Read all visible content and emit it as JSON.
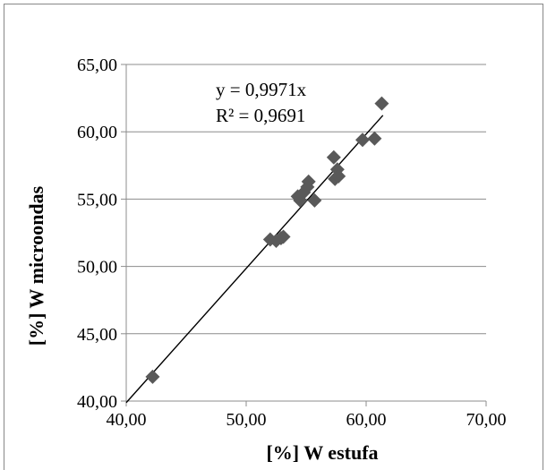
{
  "chart_data": {
    "type": "scatter",
    "title": "",
    "xlabel": "[%] W estufa",
    "ylabel": "[%] W microondas",
    "xlim": [
      40,
      70
    ],
    "ylim": [
      40,
      65
    ],
    "x_ticks": [
      40,
      50,
      60,
      70
    ],
    "y_ticks": [
      40,
      45,
      50,
      55,
      60,
      65
    ],
    "x_tick_labels": [
      "40,00",
      "50,00",
      "60,00",
      "70,00"
    ],
    "y_tick_labels": [
      "40,00",
      "45,00",
      "50,00",
      "55,00",
      "60,00",
      "65,00"
    ],
    "grid": {
      "horizontal": true,
      "vertical": false
    },
    "legend": "none",
    "series": [
      {
        "marker": "diamond",
        "color": "#595959",
        "points": [
          {
            "x": 42.2,
            "y": 41.8
          },
          {
            "x": 52.0,
            "y": 52.0
          },
          {
            "x": 52.5,
            "y": 51.9
          },
          {
            "x": 52.9,
            "y": 52.1
          },
          {
            "x": 53.1,
            "y": 52.2
          },
          {
            "x": 54.3,
            "y": 55.2
          },
          {
            "x": 54.5,
            "y": 54.9
          },
          {
            "x": 54.8,
            "y": 55.5
          },
          {
            "x": 55.2,
            "y": 56.3
          },
          {
            "x": 55.1,
            "y": 55.9
          },
          {
            "x": 55.7,
            "y": 54.9
          },
          {
            "x": 57.3,
            "y": 58.1
          },
          {
            "x": 57.6,
            "y": 57.2
          },
          {
            "x": 57.4,
            "y": 56.5
          },
          {
            "x": 57.7,
            "y": 56.7
          },
          {
            "x": 59.7,
            "y": 59.4
          },
          {
            "x": 60.7,
            "y": 59.5
          },
          {
            "x": 61.3,
            "y": 62.1
          }
        ]
      }
    ],
    "trendline": {
      "type": "linear-through-origin",
      "slope": 0.9971,
      "color": "#000000",
      "x_range": [
        40,
        61.4
      ]
    },
    "annotations": {
      "equation": "y = 0,9971x",
      "r_squared": "R² = 0,9691"
    }
  }
}
